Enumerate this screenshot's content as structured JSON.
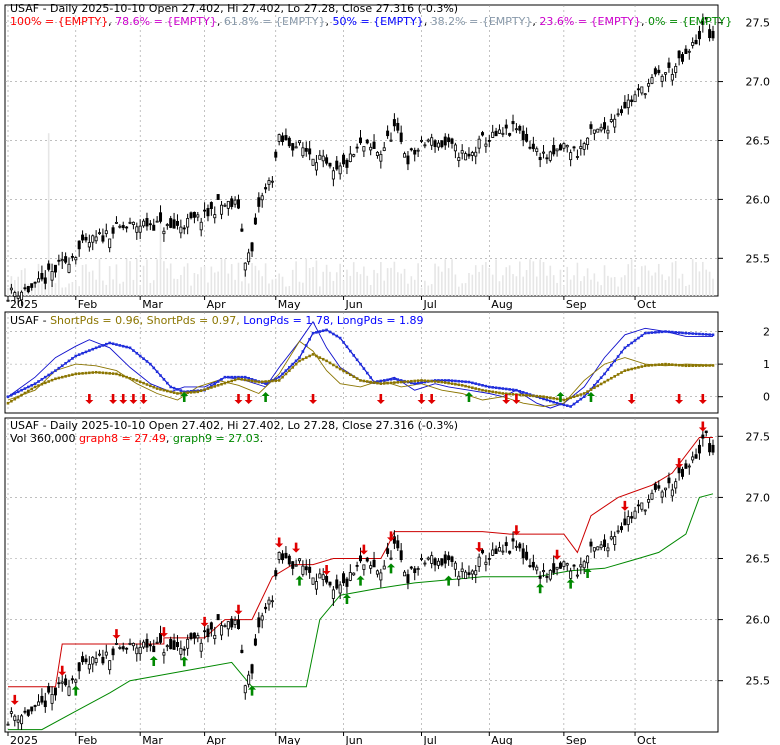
{
  "chart_data": [
    {
      "type": "candlestick",
      "title": "USAF - Daily 2025-10-10 Open 27.402, Hi 27.402, Lo 27.28, Close 27.316 (-0.3%)",
      "legend": [
        {
          "text": "100% = {EMPTY}",
          "color": "#ff0000"
        },
        {
          "text": ", ",
          "color": "#000000"
        },
        {
          "text": "78.6% = {EMPTY}",
          "color": "#cc00cc"
        },
        {
          "text": ", ",
          "color": "#000000"
        },
        {
          "text": "61.8% = {EMPTY}",
          "color": "#8899aa"
        },
        {
          "text": ", ",
          "color": "#000000"
        },
        {
          "text": "50% = {EMPTY}",
          "color": "#0000ff"
        },
        {
          "text": ", ",
          "color": "#000000"
        },
        {
          "text": "38.2% = {EMPTY}",
          "color": "#8899aa"
        },
        {
          "text": ", ",
          "color": "#000000"
        },
        {
          "text": "23.6% = {EMPTY}",
          "color": "#cc00cc"
        },
        {
          "text": ", ",
          "color": "#000000"
        },
        {
          "text": "0% = {EMPTY}",
          "color": "#008800"
        }
      ],
      "y_ticks": [
        "27.5",
        "27.0",
        "26.5",
        "26.0",
        "25.5"
      ],
      "ylim": [
        25.18,
        27.65
      ],
      "x_labels": [
        "2025",
        "Feb",
        "Mar",
        "Apr",
        "May",
        "Jun",
        "Jul",
        "Aug",
        "Sep",
        "Oct"
      ],
      "close_keypoints": [
        [
          0,
          25.2
        ],
        [
          8,
          25.25
        ],
        [
          14,
          25.4
        ],
        [
          22,
          25.6
        ],
        [
          32,
          25.75
        ],
        [
          42,
          25.8
        ],
        [
          48,
          25.75
        ],
        [
          58,
          25.85
        ],
        [
          62,
          25.95
        ],
        [
          68,
          25.95
        ],
        [
          70,
          25.5
        ],
        [
          72,
          25.55
        ],
        [
          74,
          25.95
        ],
        [
          78,
          26.2
        ],
        [
          80,
          26.5
        ],
        [
          86,
          26.45
        ],
        [
          92,
          26.35
        ],
        [
          96,
          26.2
        ],
        [
          100,
          26.3
        ],
        [
          104,
          26.45
        ],
        [
          110,
          26.4
        ],
        [
          114,
          26.6
        ],
        [
          118,
          26.35
        ],
        [
          124,
          26.5
        ],
        [
          130,
          26.45
        ],
        [
          136,
          26.35
        ],
        [
          140,
          26.5
        ],
        [
          146,
          26.55
        ],
        [
          150,
          26.6
        ],
        [
          156,
          26.4
        ],
        [
          160,
          26.35
        ],
        [
          164,
          26.45
        ],
        [
          168,
          26.4
        ],
        [
          172,
          26.55
        ],
        [
          176,
          26.6
        ],
        [
          180,
          26.75
        ],
        [
          184,
          26.85
        ],
        [
          188,
          26.95
        ],
        [
          192,
          27.05
        ],
        [
          196,
          27.1
        ],
        [
          200,
          27.2
        ],
        [
          204,
          27.4
        ],
        [
          206,
          27.5
        ],
        [
          208,
          27.316
        ]
      ],
      "grid": "horizontal-dashed"
    },
    {
      "type": "line",
      "title": "USAF - ShortPds = 0.96, ShortPds = 0.97, LongPds = 1.78, LongPds = 1.89",
      "legend": [
        {
          "text": "USAF - ",
          "color": "#000000"
        },
        {
          "text": "ShortPds = 0.96, ",
          "color": "#8b7500"
        },
        {
          "text": "ShortPds = 0.97, ",
          "color": "#8b7500"
        },
        {
          "text": "LongPds = 1.78, ",
          "color": "#0000ff"
        },
        {
          "text": "LongPds = 1.89",
          "color": "#0000ff"
        }
      ],
      "y_ticks": [
        "2",
        "1",
        "0"
      ],
      "ylim": [
        -0.5,
        2.6
      ],
      "series": [
        {
          "color": "#1010cc",
          "values": [
            [
              0,
              0.0
            ],
            [
              8,
              0.4
            ],
            [
              14,
              0.8
            ],
            [
              20,
              1.25
            ],
            [
              26,
              1.5
            ],
            [
              30,
              1.65
            ],
            [
              36,
              1.5
            ],
            [
              42,
              1.0
            ],
            [
              48,
              0.3
            ],
            [
              52,
              0.15
            ],
            [
              58,
              0.2
            ],
            [
              64,
              0.6
            ],
            [
              70,
              0.6
            ],
            [
              76,
              0.4
            ],
            [
              80,
              0.6
            ],
            [
              86,
              1.2
            ],
            [
              90,
              1.95
            ],
            [
              94,
              2.05
            ],
            [
              98,
              1.8
            ],
            [
              104,
              1.0
            ],
            [
              108,
              0.45
            ],
            [
              114,
              0.55
            ],
            [
              120,
              0.4
            ],
            [
              126,
              0.5
            ],
            [
              130,
              0.5
            ],
            [
              136,
              0.45
            ],
            [
              142,
              0.3
            ],
            [
              146,
              0.25
            ],
            [
              150,
              0.2
            ],
            [
              156,
              0.0
            ],
            [
              162,
              -0.2
            ],
            [
              166,
              -0.3
            ],
            [
              170,
              0.0
            ],
            [
              176,
              0.7
            ],
            [
              182,
              1.5
            ],
            [
              188,
              1.95
            ],
            [
              194,
              2.0
            ],
            [
              200,
              1.95
            ],
            [
              208,
              1.9
            ]
          ]
        },
        {
          "color": "#1010cc",
          "values": [
            [
              0,
              0.0
            ],
            [
              8,
              0.6
            ],
            [
              14,
              1.2
            ],
            [
              20,
              1.55
            ],
            [
              24,
              1.75
            ],
            [
              30,
              1.5
            ],
            [
              36,
              0.9
            ],
            [
              42,
              0.4
            ],
            [
              48,
              0.15
            ],
            [
              52,
              0.3
            ],
            [
              58,
              0.3
            ],
            [
              64,
              0.6
            ],
            [
              70,
              0.5
            ],
            [
              76,
              0.3
            ],
            [
              80,
              0.9
            ],
            [
              86,
              1.7
            ],
            [
              90,
              2.3
            ],
            [
              94,
              1.5
            ],
            [
              98,
              0.9
            ],
            [
              104,
              0.5
            ],
            [
              108,
              0.4
            ],
            [
              114,
              0.6
            ],
            [
              120,
              0.2
            ],
            [
              126,
              0.4
            ],
            [
              130,
              0.3
            ],
            [
              136,
              0.2
            ],
            [
              142,
              0.1
            ],
            [
              146,
              0.0
            ],
            [
              150,
              0.2
            ],
            [
              156,
              -0.2
            ],
            [
              160,
              -0.35
            ],
            [
              164,
              -0.2
            ],
            [
              170,
              0.3
            ],
            [
              176,
              1.2
            ],
            [
              182,
              1.9
            ],
            [
              188,
              2.1
            ],
            [
              194,
              2.0
            ],
            [
              200,
              1.85
            ],
            [
              208,
              1.85
            ]
          ]
        },
        {
          "color": "#8b7500",
          "values": [
            [
              0,
              -0.2
            ],
            [
              8,
              0.3
            ],
            [
              14,
              0.55
            ],
            [
              20,
              0.7
            ],
            [
              26,
              0.75
            ],
            [
              32,
              0.7
            ],
            [
              38,
              0.5
            ],
            [
              44,
              0.25
            ],
            [
              50,
              0.1
            ],
            [
              56,
              0.15
            ],
            [
              62,
              0.35
            ],
            [
              68,
              0.55
            ],
            [
              74,
              0.45
            ],
            [
              80,
              0.5
            ],
            [
              86,
              1.1
            ],
            [
              90,
              1.3
            ],
            [
              94,
              1.1
            ],
            [
              98,
              0.85
            ],
            [
              104,
              0.5
            ],
            [
              110,
              0.4
            ],
            [
              116,
              0.45
            ],
            [
              122,
              0.5
            ],
            [
              128,
              0.45
            ],
            [
              134,
              0.35
            ],
            [
              140,
              0.2
            ],
            [
              146,
              0.1
            ],
            [
              152,
              0.05
            ],
            [
              158,
              0.0
            ],
            [
              164,
              -0.1
            ],
            [
              170,
              0.1
            ],
            [
              176,
              0.45
            ],
            [
              182,
              0.8
            ],
            [
              188,
              0.95
            ],
            [
              194,
              1.0
            ],
            [
              200,
              0.95
            ],
            [
              208,
              0.96
            ]
          ]
        },
        {
          "color": "#8b7500",
          "values": [
            [
              0,
              -0.1
            ],
            [
              8,
              0.2
            ],
            [
              14,
              0.8
            ],
            [
              20,
              1.0
            ],
            [
              26,
              0.95
            ],
            [
              32,
              0.8
            ],
            [
              38,
              0.4
            ],
            [
              44,
              0.1
            ],
            [
              50,
              -0.1
            ],
            [
              56,
              0.3
            ],
            [
              62,
              0.5
            ],
            [
              68,
              0.35
            ],
            [
              74,
              0.1
            ],
            [
              80,
              0.7
            ],
            [
              86,
              1.7
            ],
            [
              90,
              1.4
            ],
            [
              94,
              0.8
            ],
            [
              98,
              0.4
            ],
            [
              104,
              0.3
            ],
            [
              110,
              0.5
            ],
            [
              116,
              0.3
            ],
            [
              122,
              0.4
            ],
            [
              128,
              0.2
            ],
            [
              134,
              0.1
            ],
            [
              140,
              -0.1
            ],
            [
              146,
              0.0
            ],
            [
              152,
              -0.2
            ],
            [
              158,
              -0.3
            ],
            [
              164,
              -0.2
            ],
            [
              170,
              0.5
            ],
            [
              176,
              1.0
            ],
            [
              182,
              1.2
            ],
            [
              188,
              1.0
            ],
            [
              194,
              0.95
            ],
            [
              200,
              1.0
            ],
            [
              208,
              0.97
            ]
          ]
        }
      ],
      "signal_down_idx": [
        24,
        31,
        34,
        37,
        40,
        68,
        71,
        90,
        110,
        122,
        125,
        147,
        150,
        184,
        198,
        205
      ],
      "signal_up_idx": [
        52,
        76,
        136,
        163,
        172
      ]
    },
    {
      "type": "candlestick",
      "title": "USAF - Daily 2025-10-10 Open 27.402, Hi 27.402, Lo 27.28, Close 27.316 (-0.3%)",
      "legend": [
        {
          "text": "Vol 360,000 ",
          "color": "#000000"
        },
        {
          "text": "graph8 = 27.49",
          "color": "#ff0000"
        },
        {
          "text": ", ",
          "color": "#000000"
        },
        {
          "text": "graph9 = 27.03",
          "color": "#008800"
        },
        {
          "text": ".",
          "color": "#000000"
        }
      ],
      "y_ticks": [
        "27.5",
        "27.0",
        "26.5",
        "26.0",
        "25.5"
      ],
      "ylim": [
        25.08,
        27.65
      ],
      "x_labels": [
        "2025",
        "Feb",
        "Mar",
        "Apr",
        "May",
        "Jun",
        "Jul",
        "Aug",
        "Sep",
        "Oct"
      ],
      "graph8": {
        "color": "#cc0000",
        "values": [
          [
            0,
            25.45
          ],
          [
            14,
            25.45
          ],
          [
            16,
            25.8
          ],
          [
            46,
            25.8
          ],
          [
            46,
            25.85
          ],
          [
            58,
            25.85
          ],
          [
            64,
            26.0
          ],
          [
            72,
            26.0
          ],
          [
            78,
            26.35
          ],
          [
            84,
            26.45
          ],
          [
            90,
            26.45
          ],
          [
            96,
            26.5
          ],
          [
            104,
            26.5
          ],
          [
            110,
            26.5
          ],
          [
            112,
            26.6
          ],
          [
            114,
            26.72
          ],
          [
            140,
            26.72
          ],
          [
            148,
            26.7
          ],
          [
            160,
            26.7
          ],
          [
            164,
            26.7
          ],
          [
            168,
            26.55
          ],
          [
            172,
            26.85
          ],
          [
            180,
            27.0
          ],
          [
            190,
            27.1
          ],
          [
            196,
            27.2
          ],
          [
            204,
            27.49
          ],
          [
            208,
            27.49
          ]
        ]
      },
      "graph9": {
        "color": "#008800",
        "values": [
          [
            0,
            25.1
          ],
          [
            10,
            25.1
          ],
          [
            20,
            25.25
          ],
          [
            30,
            25.4
          ],
          [
            36,
            25.5
          ],
          [
            46,
            25.55
          ],
          [
            56,
            25.6
          ],
          [
            66,
            25.65
          ],
          [
            72,
            25.45
          ],
          [
            88,
            25.45
          ],
          [
            92,
            26.0
          ],
          [
            98,
            26.2
          ],
          [
            108,
            26.25
          ],
          [
            120,
            26.3
          ],
          [
            140,
            26.35
          ],
          [
            156,
            26.35
          ],
          [
            166,
            26.4
          ],
          [
            176,
            26.42
          ],
          [
            186,
            26.5
          ],
          [
            192,
            26.55
          ],
          [
            200,
            26.7
          ],
          [
            204,
            27.0
          ],
          [
            208,
            27.03
          ]
        ]
      },
      "signal_down_idx": [
        2,
        16,
        32,
        46,
        58,
        68,
        80,
        85,
        94,
        105,
        113,
        139,
        150,
        162,
        182,
        198,
        205
      ],
      "signal_up_idx": [
        20,
        43,
        52,
        72,
        86,
        100,
        104,
        113,
        130,
        157,
        166,
        171
      ]
    }
  ]
}
